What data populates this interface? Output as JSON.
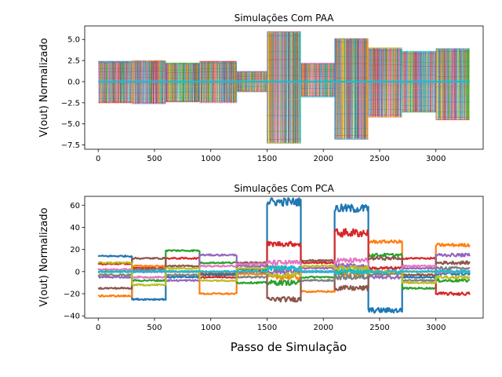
{
  "colors": [
    "#1f77b4",
    "#ff7f0e",
    "#2ca02c",
    "#d62728",
    "#9467bd",
    "#8c564b",
    "#e377c2",
    "#7f7f7f",
    "#bcbd22",
    "#17becf"
  ],
  "figure": {
    "xlabel": "Passo de Simulação"
  },
  "chart_data": [
    {
      "type": "line",
      "title": "Simulações Com PAA",
      "xlabel": "",
      "ylabel": "V(out) Normalizado",
      "xlim": [
        -120,
        3420
      ],
      "ylim": [
        -8.0,
        6.6
      ],
      "xticks": [
        0,
        500,
        1000,
        1500,
        2000,
        2500,
        3000
      ],
      "yticks": [
        -7.5,
        -5.0,
        -2.5,
        0.0,
        2.5,
        5.0
      ],
      "ytick_labels": [
        "−7.5",
        "−5.0",
        "−2.5",
        "0.0",
        "2.5",
        "5.0"
      ],
      "grid": false,
      "x_range": [
        0,
        3300
      ],
      "segments": [
        {
          "x": [
            0,
            300
          ],
          "envelope": [
            -2.5,
            2.4
          ]
        },
        {
          "x": [
            300,
            600
          ],
          "envelope": [
            -2.6,
            2.5
          ]
        },
        {
          "x": [
            600,
            900
          ],
          "envelope": [
            -2.4,
            2.2
          ]
        },
        {
          "x": [
            900,
            1230
          ],
          "envelope": [
            -2.5,
            2.4
          ]
        },
        {
          "x": [
            1230,
            1500
          ],
          "envelope": [
            -1.2,
            1.2
          ]
        },
        {
          "x": [
            1500,
            1800
          ],
          "envelope": [
            -7.3,
            5.9
          ]
        },
        {
          "x": [
            1800,
            2100
          ],
          "envelope": [
            -1.8,
            2.2
          ]
        },
        {
          "x": [
            2100,
            2400
          ],
          "envelope": [
            -6.8,
            5.1
          ]
        },
        {
          "x": [
            2400,
            2700
          ],
          "envelope": [
            -4.2,
            4.0
          ]
        },
        {
          "x": [
            2700,
            3000
          ],
          "envelope": [
            -3.6,
            3.6
          ]
        },
        {
          "x": [
            3000,
            3300
          ],
          "envelope": [
            -4.5,
            3.9
          ]
        }
      ],
      "baseline_y": 0.0
    },
    {
      "type": "line",
      "title": "Simulações Com PCA",
      "xlabel": "",
      "ylabel": "V(out) Normalizado",
      "xlim": [
        -120,
        3420
      ],
      "ylim": [
        -42,
        68
      ],
      "xticks": [
        0,
        500,
        1000,
        1500,
        2000,
        2500,
        3000
      ],
      "yticks": [
        -40,
        -20,
        0,
        20,
        40,
        60
      ],
      "ytick_labels": [
        "−40",
        "−20",
        "0",
        "20",
        "40",
        "60"
      ],
      "grid": false,
      "segments": [
        0,
        300,
        600,
        900,
        1230,
        1500,
        1800,
        2100,
        2400,
        2700,
        3000,
        3300
      ],
      "series": [
        {
          "color": "#1f77b4",
          "levels": [
            14,
            -25,
            -5,
            -3,
            2,
            63,
            0,
            57,
            -35,
            -5,
            -2
          ]
        },
        {
          "color": "#ff7f0e",
          "levels": [
            -22,
            5,
            0,
            -20,
            -2,
            -5,
            -18,
            -2,
            27,
            0,
            24
          ]
        },
        {
          "color": "#2ca02c",
          "levels": [
            0,
            -8,
            19,
            8,
            -10,
            -10,
            -5,
            0,
            15,
            -15,
            -8
          ]
        },
        {
          "color": "#d62728",
          "levels": [
            7,
            3,
            12,
            -5,
            0,
            25,
            8,
            35,
            3,
            12,
            -20
          ]
        },
        {
          "color": "#9467bd",
          "levels": [
            -5,
            0,
            -8,
            15,
            5,
            0,
            3,
            5,
            -5,
            3,
            15
          ]
        },
        {
          "color": "#8c564b",
          "levels": [
            -15,
            12,
            5,
            -2,
            8,
            -25,
            10,
            -15,
            12,
            -3,
            8
          ]
        },
        {
          "color": "#e377c2",
          "levels": [
            2,
            -5,
            0,
            5,
            7,
            8,
            0,
            10,
            0,
            5,
            0
          ]
        },
        {
          "color": "#7f7f7f",
          "levels": [
            -3,
            2,
            -3,
            0,
            -5,
            3,
            -8,
            -5,
            -2,
            -8,
            3
          ]
        },
        {
          "color": "#bcbd22",
          "levels": [
            8,
            -12,
            3,
            -8,
            3,
            -3,
            5,
            3,
            0,
            -10,
            -5
          ]
        },
        {
          "color": "#17becf",
          "levels": [
            0,
            0,
            0,
            0,
            0,
            3,
            0,
            0,
            0,
            0,
            0
          ]
        }
      ]
    }
  ]
}
